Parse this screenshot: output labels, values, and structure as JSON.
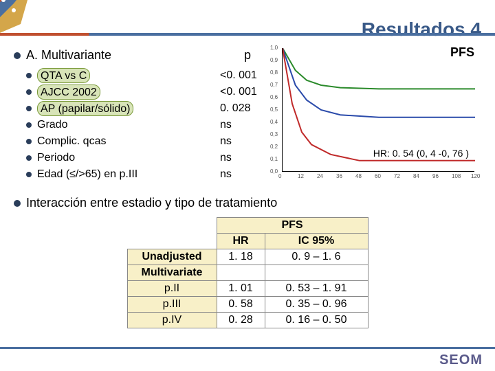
{
  "colors": {
    "accent": "#4a6fa0",
    "title": "#3a5a88",
    "underline_left": "#c05030",
    "underline_right": "#4a6fa0",
    "bullet": "#2a3d5a",
    "highlight_bg": "#d8e4b8",
    "highlight_border": "#7a9a3a",
    "table_header_bg": "#f8f0c8",
    "footer_line": "#4a6fa0",
    "logo": "#5a5a8a",
    "chart_green": "#2a8a2a",
    "chart_blue": "#2a4aaa",
    "chart_red": "#c02a2a"
  },
  "title": "Resultados 4",
  "multivariante": {
    "header": "A. Multivariante",
    "p_header": "p",
    "rows": [
      {
        "label": "QTA vs C",
        "p": "<0. 001",
        "hl": true
      },
      {
        "label": "AJCC 2002",
        "p": "<0. 001",
        "hl": true
      },
      {
        "label": "AP (papilar/sólido)",
        "p": "0. 028",
        "hl": true
      },
      {
        "label": "Grado",
        "p": "ns",
        "hl": false
      },
      {
        "label": "Complic. qcas",
        "p": "ns",
        "hl": false
      },
      {
        "label": "Periodo",
        "p": "ns",
        "hl": false
      },
      {
        "label": "Edad (≤/>65) en p.III",
        "p": "ns",
        "hl": false
      }
    ]
  },
  "pfs_chart": {
    "label": "PFS",
    "hr_text": "HR: 0. 54 (0, 4 -0, 76 )",
    "x_ticks": [
      0,
      12,
      24,
      36,
      48,
      60,
      72,
      84,
      96,
      108,
      120
    ],
    "y_ticks": [
      "0,0",
      "0,1",
      "0,2",
      "0,3",
      "0,4",
      "0,5",
      "0,6",
      "0,7",
      "0,8",
      "0,9",
      "1,0"
    ],
    "curves": [
      {
        "color_key": "chart_green",
        "pts": [
          [
            0,
            1.0
          ],
          [
            8,
            0.82
          ],
          [
            15,
            0.74
          ],
          [
            24,
            0.7
          ],
          [
            36,
            0.68
          ],
          [
            60,
            0.67
          ],
          [
            120,
            0.67
          ]
        ]
      },
      {
        "color_key": "chart_blue",
        "pts": [
          [
            0,
            1.0
          ],
          [
            8,
            0.7
          ],
          [
            15,
            0.58
          ],
          [
            24,
            0.5
          ],
          [
            36,
            0.46
          ],
          [
            60,
            0.44
          ],
          [
            120,
            0.44
          ]
        ]
      },
      {
        "color_key": "chart_red",
        "pts": [
          [
            0,
            1.0
          ],
          [
            6,
            0.55
          ],
          [
            12,
            0.32
          ],
          [
            18,
            0.22
          ],
          [
            30,
            0.14
          ],
          [
            48,
            0.09
          ],
          [
            120,
            0.09
          ]
        ]
      }
    ]
  },
  "interaction": {
    "header": "Interacción entre estadio y tipo de tratamiento",
    "table": {
      "super_header": "PFS",
      "col_hr": "HR",
      "col_ic": "IC 95%",
      "rows": [
        {
          "label": "Unadjusted",
          "hr": "1. 18",
          "ic": "0. 9 – 1. 6",
          "bold": true
        },
        {
          "label": "Multivariate",
          "hr": "",
          "ic": "",
          "bold": true
        },
        {
          "label": "p.II",
          "hr": "1. 01",
          "ic": "0. 53 – 1. 91",
          "bold": false
        },
        {
          "label": "p.III",
          "hr": "0. 58",
          "ic": "0. 35 – 0. 96",
          "bold": false
        },
        {
          "label": "p.IV",
          "hr": "0. 28",
          "ic": "0. 16 – 0. 50",
          "bold": false
        }
      ]
    }
  },
  "logo": "SEOM"
}
